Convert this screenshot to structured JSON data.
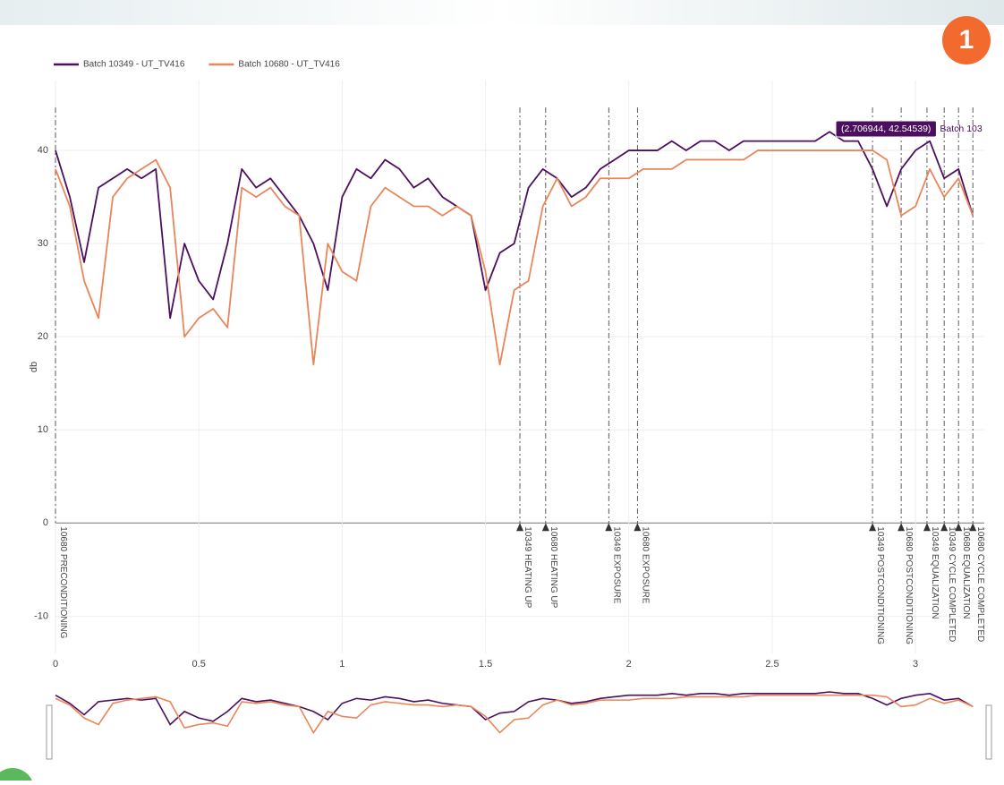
{
  "badge": "1",
  "chart_data": {
    "type": "line",
    "y_label": "db",
    "x": [
      0,
      0.05,
      0.1,
      0.15,
      0.2,
      0.25,
      0.3,
      0.35,
      0.4,
      0.45,
      0.5,
      0.55,
      0.6,
      0.65,
      0.7,
      0.75,
      0.8,
      0.85,
      0.9,
      0.95,
      1,
      1.05,
      1.1,
      1.15,
      1.2,
      1.25,
      1.3,
      1.35,
      1.4,
      1.45,
      1.5,
      1.55,
      1.6,
      1.65,
      1.7,
      1.75,
      1.8,
      1.85,
      1.9,
      1.95,
      2,
      2.05,
      2.1,
      2.15,
      2.2,
      2.25,
      2.3,
      2.35,
      2.4,
      2.45,
      2.5,
      2.55,
      2.6,
      2.65,
      2.7,
      2.75,
      2.8,
      2.85,
      2.9,
      2.95,
      3,
      3.05,
      3.1,
      3.15,
      3.2
    ],
    "series": [
      {
        "name": "Batch 10349 - UT_TV416",
        "color": "#4b0f5e",
        "values": [
          40,
          35,
          28,
          36,
          37,
          38,
          37,
          38,
          22,
          30,
          26,
          24,
          30,
          38,
          36,
          37,
          35,
          33,
          30,
          25,
          35,
          38,
          37,
          39,
          38,
          36,
          37,
          35,
          34,
          33,
          25,
          29,
          30,
          36,
          38,
          37,
          35,
          36,
          38,
          39,
          40,
          40,
          40,
          41,
          40,
          41,
          41,
          40,
          41,
          41,
          41,
          41,
          41,
          41,
          42,
          41,
          41,
          38,
          34,
          38,
          40,
          41,
          37,
          38,
          33
        ]
      },
      {
        "name": "Batch 10680 - UT_TV416",
        "color": "#e8865a",
        "values": [
          38,
          34,
          26,
          22,
          35,
          37,
          38,
          39,
          36,
          20,
          22,
          23,
          21,
          36,
          35,
          36,
          34,
          33,
          17,
          30,
          27,
          26,
          34,
          36,
          35,
          34,
          34,
          33,
          34,
          33,
          27,
          17,
          25,
          26,
          34,
          37,
          34,
          35,
          37,
          37,
          37,
          38,
          38,
          38,
          39,
          39,
          39,
          39,
          39,
          40,
          40,
          40,
          40,
          40,
          40,
          40,
          40,
          40,
          39,
          33,
          34,
          38,
          35,
          37,
          33
        ]
      }
    ],
    "xlim": [
      0,
      3.24
    ],
    "ylim": [
      -14,
      47.5
    ],
    "xticks": [
      0,
      0.5,
      1,
      1.5,
      2,
      2.5,
      3
    ],
    "yticks": [
      -10,
      0,
      10,
      20,
      30,
      40
    ],
    "grid": true,
    "annotations": [
      {
        "x": 0,
        "text": "10680 PRECONDITIONING"
      },
      {
        "x": 1.62,
        "text": "10349 HEATING UP"
      },
      {
        "x": 1.71,
        "text": "10680 HEATING UP"
      },
      {
        "x": 1.93,
        "text": "10349 EXPOSURE"
      },
      {
        "x": 2.03,
        "text": "10680 EXPOSURE"
      },
      {
        "x": 2.85,
        "text": "10349 POSTCONDITIONING"
      },
      {
        "x": 2.95,
        "text": "10680 POSTCONDITIONING"
      },
      {
        "x": 3.04,
        "text": "10349 EQUALIZATION"
      },
      {
        "x": 3.1,
        "text": "10349 CYCLE COMPLETED"
      },
      {
        "x": 3.15,
        "text": "10680 EQUALIZATION"
      },
      {
        "x": 3.2,
        "text": "10680 CYCLE COMPLETED"
      }
    ],
    "hover_label": {
      "text": "(2.706944, 42.54539)",
      "name": "Batch 103"
    }
  }
}
